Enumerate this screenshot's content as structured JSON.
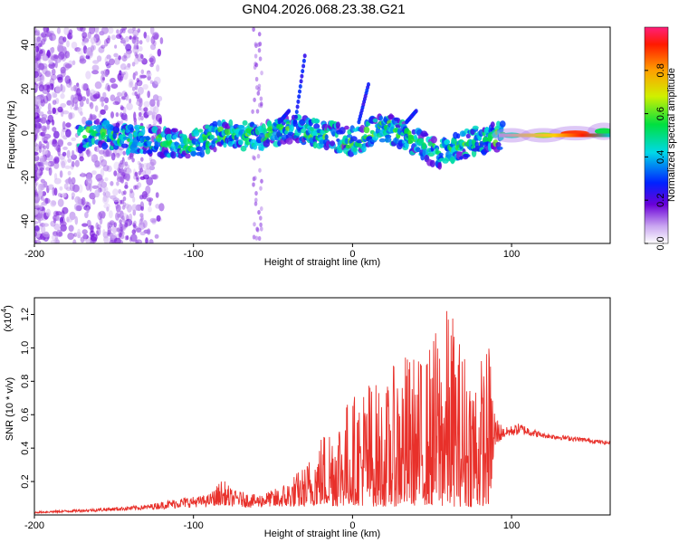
{
  "title": "GN04.2026.068.23.38.G21",
  "chart_data": [
    {
      "type": "heatmap",
      "name": "spectrogram",
      "xlabel": "Height of straight line (km)",
      "ylabel": "Frequency (Hz)",
      "xlim": [
        -200,
        162
      ],
      "ylim": [
        -50,
        48
      ],
      "xticks": [
        -200,
        -100,
        0,
        100
      ],
      "yticks": [
        -40,
        -20,
        0,
        20,
        40
      ],
      "ridge": {
        "x": [
          -170,
          -160,
          -140,
          -120,
          -100,
          -80,
          -60,
          -40,
          -20,
          0,
          20,
          40,
          55,
          65,
          80,
          100,
          120,
          140,
          162
        ],
        "y": [
          -2,
          0,
          -3,
          -4,
          -5,
          0,
          -2,
          2,
          0,
          -4,
          3,
          -4,
          -10,
          -6,
          -3,
          -1,
          -1,
          0,
          1
        ]
      },
      "colorbar": {
        "label": "Normalized spectral amplitude",
        "range": [
          0,
          1
        ],
        "ticks": [
          0.0,
          0.2,
          0.4,
          0.6,
          0.8
        ],
        "tick_labels": [
          "0.0",
          "0.2",
          "0.4",
          "0.6",
          "0.8"
        ]
      }
    },
    {
      "type": "line",
      "name": "snr",
      "xlabel": "Height of straight line (km)",
      "ylabel": "SNR (10 * v/v)",
      "scale_label": "(x10",
      "scale_exp": "4",
      "xlim": [
        -200,
        162
      ],
      "ylim": [
        0,
        1.3
      ],
      "xticks": [
        -200,
        -100,
        0,
        100
      ],
      "yticks": [
        0.2,
        0.4,
        0.6,
        0.8,
        1.0,
        1.2
      ],
      "ytick_labels": [
        "0.2",
        "0.4",
        "0.6",
        "0.8",
        "1.0",
        "1.2"
      ],
      "color": "#e8302a",
      "envelope": {
        "x": [
          -200,
          -160,
          -130,
          -110,
          -90,
          -82,
          -75,
          -60,
          -50,
          -40,
          -30,
          -22,
          -10,
          0,
          10,
          20,
          30,
          45,
          55,
          62,
          66,
          72,
          80,
          86,
          90,
          95,
          105,
          120,
          140,
          162
        ],
        "upper": [
          0.02,
          0.04,
          0.06,
          0.1,
          0.12,
          0.22,
          0.15,
          0.12,
          0.15,
          0.22,
          0.3,
          0.46,
          0.66,
          0.72,
          0.85,
          0.75,
          1.0,
          0.95,
          1.2,
          1.28,
          1.1,
          1.0,
          0.95,
          1.05,
          0.62,
          0.52,
          0.55,
          0.49,
          0.47,
          0.44
        ],
        "lower": [
          0.01,
          0.02,
          0.03,
          0.04,
          0.05,
          0.06,
          0.05,
          0.04,
          0.05,
          0.05,
          0.05,
          0.06,
          0.05,
          0.06,
          0.05,
          0.05,
          0.05,
          0.06,
          0.05,
          0.05,
          0.05,
          0.05,
          0.05,
          0.06,
          0.42,
          0.46,
          0.48,
          0.46,
          0.44,
          0.42
        ]
      }
    }
  ]
}
